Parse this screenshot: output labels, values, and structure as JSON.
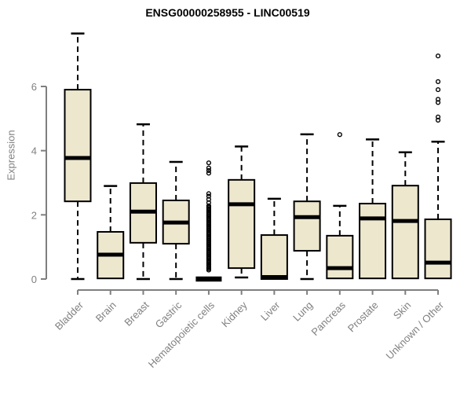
{
  "title": "ENSG00000258955 - LINC00519",
  "chart_data": {
    "type": "boxplot",
    "title": "ENSG00000258955 - LINC00519",
    "xlabel": "",
    "ylabel": "Expression",
    "ylim": [
      0,
      7.7
    ],
    "yticks": [
      0,
      2,
      4,
      6
    ],
    "grid": false,
    "legend": "none",
    "box_fill": "#EDE7CE",
    "box_stroke": "#000000",
    "axis_color": "#7f7f7f",
    "label_color": "#808080",
    "categories": [
      "Bladder",
      "Brain",
      "Breast",
      "Gastric",
      "Hematopoietic cells",
      "Kidney",
      "Liver",
      "Lung",
      "Pancreas",
      "Prostate",
      "Skin",
      "Unknown / Other"
    ],
    "series": [
      {
        "name": "Bladder",
        "low": 0,
        "q1": 2.42,
        "median": 3.77,
        "q3": 5.9,
        "high": 7.65,
        "outliers": []
      },
      {
        "name": "Brain",
        "low": 0.02,
        "q1": 0.02,
        "median": 0.76,
        "q3": 1.47,
        "high": 2.9,
        "outliers": []
      },
      {
        "name": "Breast",
        "low": 0,
        "q1": 1.13,
        "median": 2.1,
        "q3": 2.99,
        "high": 4.82,
        "outliers": []
      },
      {
        "name": "Gastric",
        "low": 0,
        "q1": 1.1,
        "median": 1.76,
        "q3": 2.45,
        "high": 3.65,
        "outliers": []
      },
      {
        "name": "Hematopoietic cells",
        "low": 0,
        "q1": 0,
        "median": 0,
        "q3": 0,
        "high": 0,
        "outliers": [
          0.28,
          0.32,
          0.36,
          0.4,
          0.44,
          0.48,
          0.52,
          0.56,
          0.6,
          0.64,
          0.68,
          0.72,
          0.76,
          0.8,
          0.84,
          0.88,
          0.92,
          0.96,
          1.0,
          1.04,
          1.08,
          1.12,
          1.16,
          1.2,
          1.24,
          1.28,
          1.32,
          1.36,
          1.4,
          1.44,
          1.48,
          1.52,
          1.56,
          1.6,
          1.64,
          1.68,
          1.72,
          1.76,
          1.8,
          1.84,
          1.88,
          1.92,
          1.96,
          2.0,
          2.04,
          2.08,
          2.12,
          2.16,
          2.2,
          2.24,
          2.28,
          2.38,
          2.48,
          2.58,
          2.66,
          3.3,
          3.38,
          3.46,
          3.62
        ]
      },
      {
        "name": "Kidney",
        "low": 0.05,
        "q1": 0.34,
        "median": 2.33,
        "q3": 3.09,
        "high": 4.13,
        "outliers": []
      },
      {
        "name": "Liver",
        "low": 0,
        "q1": 0,
        "median": 0.06,
        "q3": 1.37,
        "high": 2.5,
        "outliers": []
      },
      {
        "name": "Lung",
        "low": 0,
        "q1": 0.88,
        "median": 1.93,
        "q3": 2.42,
        "high": 4.51,
        "outliers": []
      },
      {
        "name": "Pancreas",
        "low": 0.02,
        "q1": 0.02,
        "median": 0.34,
        "q3": 1.35,
        "high": 2.28,
        "outliers": [
          4.5
        ]
      },
      {
        "name": "Prostate",
        "low": 0.02,
        "q1": 0.02,
        "median": 1.89,
        "q3": 2.35,
        "high": 4.35,
        "outliers": []
      },
      {
        "name": "Skin",
        "low": 0.02,
        "q1": 0.02,
        "median": 1.81,
        "q3": 2.91,
        "high": 3.95,
        "outliers": []
      },
      {
        "name": "Unknown / Other",
        "low": 0.02,
        "q1": 0.02,
        "median": 0.51,
        "q3": 1.86,
        "high": 4.28,
        "outliers": [
          6.95,
          6.15,
          5.9,
          5.6,
          5.5,
          5.05,
          4.95
        ]
      }
    ]
  }
}
